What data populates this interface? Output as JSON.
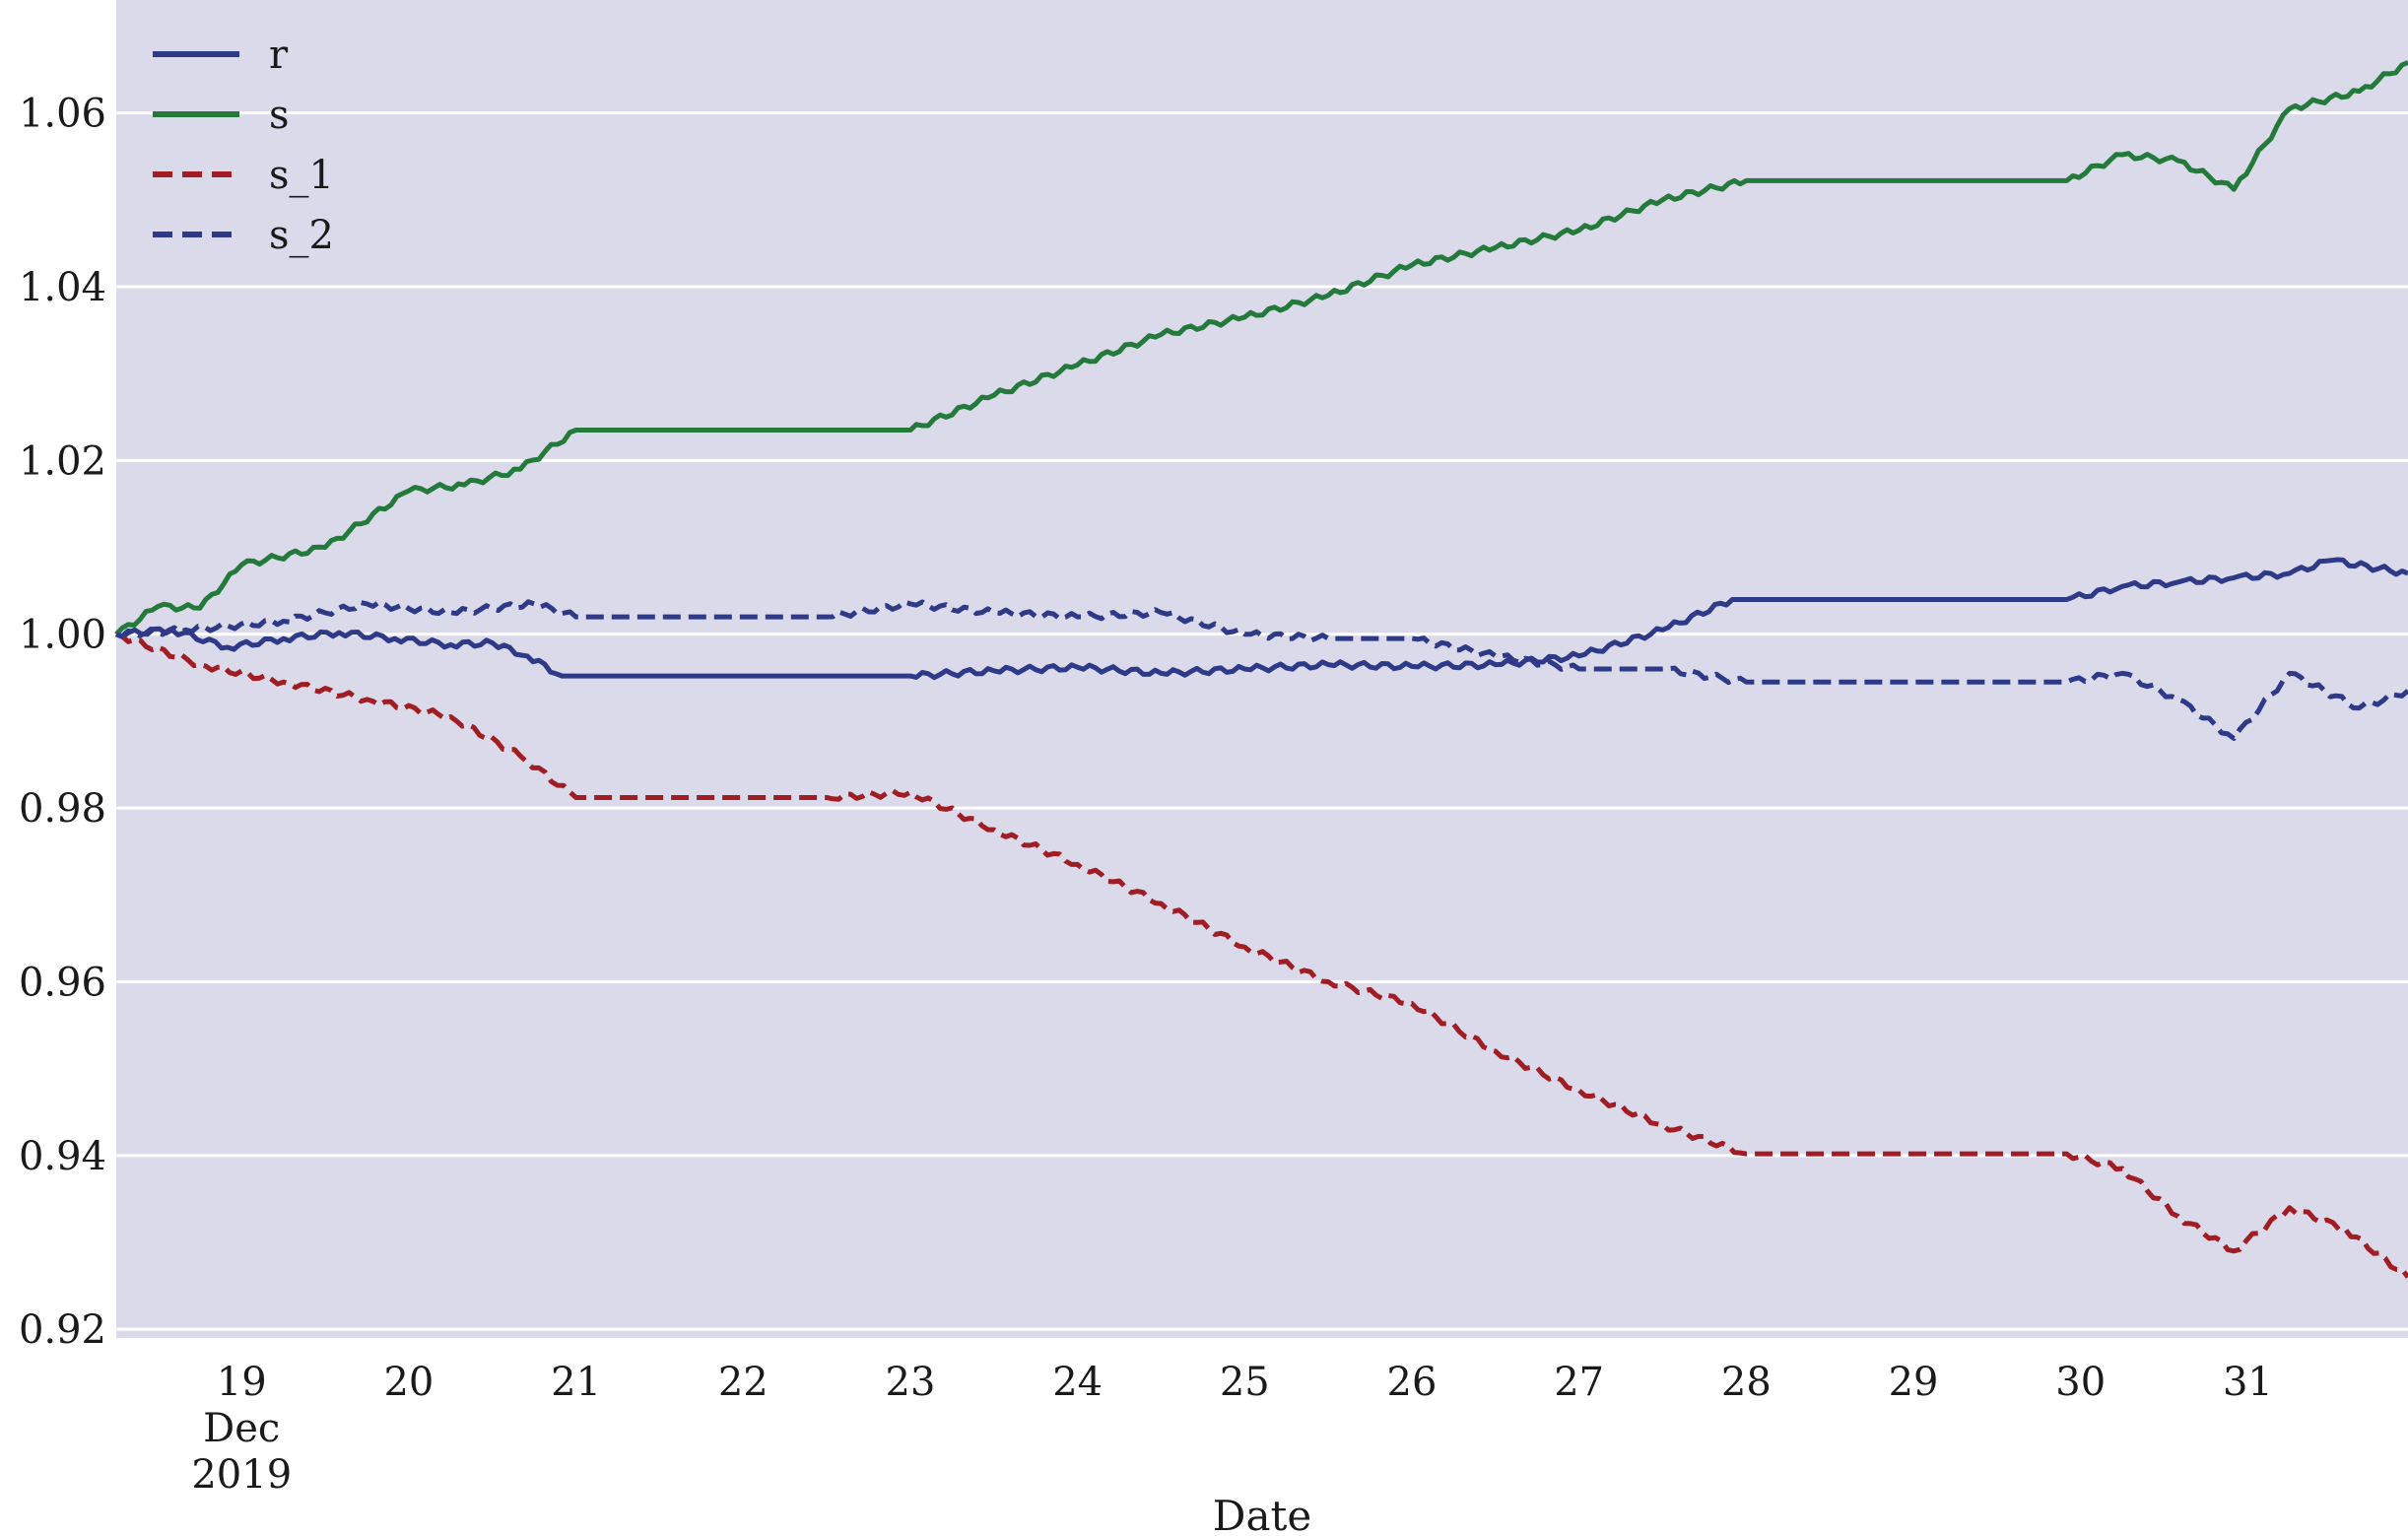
{
  "chart_data": {
    "type": "line",
    "title": "",
    "xlabel": "Date",
    "ylabel": "",
    "x_ticks": [
      "19",
      "20",
      "21",
      "22",
      "23",
      "24",
      "25",
      "26",
      "27",
      "28",
      "29",
      "30",
      "31"
    ],
    "x_tick_dates": [
      "2019-12-19",
      "2019-12-20",
      "2019-12-21",
      "2019-12-22",
      "2019-12-23",
      "2019-12-24",
      "2019-12-25",
      "2019-12-26",
      "2019-12-27",
      "2019-12-28",
      "2019-12-29",
      "2019-12-30",
      "2019-12-31"
    ],
    "x_sublabel_month": "Dec",
    "x_sublabel_year": "2019",
    "xlim": [
      "2019-12-18 06:00",
      "2019-12-31 23:00"
    ],
    "y_ticks": [
      "0.92",
      "0.94",
      "0.96",
      "0.98",
      "1.00",
      "1.02",
      "1.04",
      "1.06"
    ],
    "ylim": [
      0.919,
      1.073
    ],
    "grid": true,
    "legend_position": "top-left",
    "colors": {
      "background": "#dadaea",
      "grid": "#ffffff",
      "navy": "#2e3a87",
      "green": "#237a3a",
      "red": "#a11d24"
    },
    "series": [
      {
        "name": "r",
        "style": "solid",
        "color": "#2e3a87",
        "points": [
          [
            "2019-12-18 06:00",
            1.0
          ],
          [
            "2019-12-18 14:00",
            1.0005
          ],
          [
            "2019-12-18 22:00",
            0.9985
          ],
          [
            "2019-12-19 06:00",
            0.9995
          ],
          [
            "2019-12-19 14:00",
            1.0002
          ],
          [
            "2019-12-19 22:00",
            0.9995
          ],
          [
            "2019-12-20 06:00",
            0.9988
          ],
          [
            "2019-12-20 12:00",
            0.999
          ],
          [
            "2019-12-20 17:00",
            0.9975
          ],
          [
            "2019-12-20 22:00",
            0.9952
          ],
          [
            "2019-12-21 12:00",
            0.9952
          ],
          [
            "2019-12-22 12:00",
            0.9952
          ],
          [
            "2019-12-23 00:00",
            0.9952
          ],
          [
            "2019-12-23 12:00",
            0.9958
          ],
          [
            "2019-12-24 00:00",
            0.9962
          ],
          [
            "2019-12-24 12:00",
            0.9955
          ],
          [
            "2019-12-25 00:00",
            0.996
          ],
          [
            "2019-12-25 12:00",
            0.9965
          ],
          [
            "2019-12-26 00:00",
            0.9963
          ],
          [
            "2019-12-26 12:00",
            0.9965
          ],
          [
            "2019-12-27 00:00",
            0.9975
          ],
          [
            "2019-12-27 12:00",
            1.0005
          ],
          [
            "2019-12-27 22:00",
            1.004
          ],
          [
            "2019-12-28 12:00",
            1.004
          ],
          [
            "2019-12-29 12:00",
            1.004
          ],
          [
            "2019-12-29 22:00",
            1.004
          ],
          [
            "2019-12-30 06:00",
            1.0055
          ],
          [
            "2019-12-30 14:00",
            1.006
          ],
          [
            "2019-12-30 22:00",
            1.0065
          ],
          [
            "2019-12-31 06:00",
            1.007
          ],
          [
            "2019-12-31 12:00",
            1.0085
          ],
          [
            "2019-12-31 23:00",
            1.007
          ]
        ]
      },
      {
        "name": "s",
        "style": "solid",
        "color": "#237a3a",
        "points": [
          [
            "2019-12-18 06:00",
            1.0
          ],
          [
            "2019-12-18 12:00",
            1.0032
          ],
          [
            "2019-12-18 18:00",
            1.003
          ],
          [
            "2019-12-19 00:00",
            1.008
          ],
          [
            "2019-12-19 12:00",
            1.01
          ],
          [
            "2019-12-20 00:00",
            1.0165
          ],
          [
            "2019-12-20 08:00",
            1.0172
          ],
          [
            "2019-12-20 16:00",
            1.019
          ],
          [
            "2019-12-21 00:00",
            1.0235
          ],
          [
            "2019-12-21 12:00",
            1.0235
          ],
          [
            "2019-12-22 12:00",
            1.0235
          ],
          [
            "2019-12-23 00:00",
            1.0235
          ],
          [
            "2019-12-23 12:00",
            1.0275
          ],
          [
            "2019-12-24 00:00",
            1.031
          ],
          [
            "2019-12-24 12:00",
            1.0345
          ],
          [
            "2019-12-25 00:00",
            1.0365
          ],
          [
            "2019-12-25 12:00",
            1.039
          ],
          [
            "2019-12-26 00:00",
            1.0425
          ],
          [
            "2019-12-26 12:00",
            1.0445
          ],
          [
            "2019-12-27 00:00",
            1.0465
          ],
          [
            "2019-12-27 12:00",
            1.05
          ],
          [
            "2019-12-28 00:00",
            1.0522
          ],
          [
            "2019-12-29 00:00",
            1.0522
          ],
          [
            "2019-12-29 22:00",
            1.0522
          ],
          [
            "2019-12-30 06:00",
            1.0552
          ],
          [
            "2019-12-30 14:00",
            1.0545
          ],
          [
            "2019-12-30 22:00",
            1.0512
          ],
          [
            "2019-12-31 06:00",
            1.0605
          ],
          [
            "2019-12-31 16:00",
            1.0625
          ],
          [
            "2019-12-31 23:00",
            1.0658
          ]
        ]
      },
      {
        "name": "s_1",
        "style": "dashed",
        "color": "#a11d24",
        "points": [
          [
            "2019-12-18 06:00",
            1.0
          ],
          [
            "2019-12-18 18:00",
            0.9965
          ],
          [
            "2019-12-19 06:00",
            0.9945
          ],
          [
            "2019-12-19 18:00",
            0.9925
          ],
          [
            "2019-12-20 06:00",
            0.9905
          ],
          [
            "2019-12-20 16:00",
            0.986
          ],
          [
            "2019-12-21 00:00",
            0.9812
          ],
          [
            "2019-12-21 12:00",
            0.9812
          ],
          [
            "2019-12-22 12:00",
            0.9812
          ],
          [
            "2019-12-23 00:00",
            0.9818
          ],
          [
            "2019-12-23 12:00",
            0.9775
          ],
          [
            "2019-12-24 00:00",
            0.9735
          ],
          [
            "2019-12-24 12:00",
            0.969
          ],
          [
            "2019-12-25 00:00",
            0.964
          ],
          [
            "2019-12-25 12:00",
            0.96
          ],
          [
            "2019-12-26 00:00",
            0.9575
          ],
          [
            "2019-12-26 12:00",
            0.952
          ],
          [
            "2019-12-27 00:00",
            0.9475
          ],
          [
            "2019-12-27 12:00",
            0.9435
          ],
          [
            "2019-12-28 00:00",
            0.9402
          ],
          [
            "2019-12-29 00:00",
            0.9402
          ],
          [
            "2019-12-29 22:00",
            0.9402
          ],
          [
            "2019-12-30 06:00",
            0.9385
          ],
          [
            "2019-12-30 14:00",
            0.933
          ],
          [
            "2019-12-30 22:00",
            0.929
          ],
          [
            "2019-12-31 06:00",
            0.934
          ],
          [
            "2019-12-31 14:00",
            0.9315
          ],
          [
            "2019-12-31 23:00",
            0.926
          ]
        ]
      },
      {
        "name": "s_2",
        "style": "dashed",
        "color": "#2e3a87",
        "points": [
          [
            "2019-12-18 06:00",
            1.0
          ],
          [
            "2019-12-18 16:00",
            1.0005
          ],
          [
            "2019-12-19 06:00",
            1.0015
          ],
          [
            "2019-12-19 18:00",
            1.0035
          ],
          [
            "2019-12-20 06:00",
            1.0025
          ],
          [
            "2019-12-20 18:00",
            1.0035
          ],
          [
            "2019-12-21 00:00",
            1.002
          ],
          [
            "2019-12-21 12:00",
            1.002
          ],
          [
            "2019-12-22 12:00",
            1.002
          ],
          [
            "2019-12-23 00:00",
            1.0035
          ],
          [
            "2019-12-23 12:00",
            1.0025
          ],
          [
            "2019-12-24 00:00",
            1.002
          ],
          [
            "2019-12-24 12:00",
            1.0025
          ],
          [
            "2019-12-25 00:00",
            1.0
          ],
          [
            "2019-12-25 12:00",
            0.9995
          ],
          [
            "2019-12-26 00:00",
            0.9995
          ],
          [
            "2019-12-26 12:00",
            0.9975
          ],
          [
            "2019-12-27 00:00",
            0.996
          ],
          [
            "2019-12-27 12:00",
            0.996
          ],
          [
            "2019-12-28 00:00",
            0.9945
          ],
          [
            "2019-12-29 00:00",
            0.9945
          ],
          [
            "2019-12-29 22:00",
            0.9945
          ],
          [
            "2019-12-30 06:00",
            0.9955
          ],
          [
            "2019-12-30 14:00",
            0.9925
          ],
          [
            "2019-12-30 22:00",
            0.988
          ],
          [
            "2019-12-31 06:00",
            0.9955
          ],
          [
            "2019-12-31 16:00",
            0.9915
          ],
          [
            "2019-12-31 23:00",
            0.9935
          ]
        ]
      }
    ]
  }
}
